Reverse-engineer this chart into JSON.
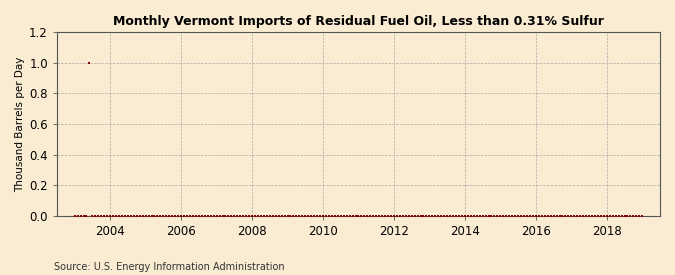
{
  "title": "Monthly Vermont Imports of Residual Fuel Oil, Less than 0.31% Sulfur",
  "ylabel": "Thousand Barrels per Day",
  "source": "Source: U.S. Energy Information Administration",
  "background_color": "#faecd2",
  "marker_color": "#8b0000",
  "grid_color": "#aaaaaa",
  "xlim_start": 2002.5,
  "xlim_end": 2019.5,
  "ylim": [
    0.0,
    1.2
  ],
  "yticks": [
    0.0,
    0.2,
    0.4,
    0.6,
    0.8,
    1.0,
    1.2
  ],
  "xticks": [
    2004,
    2006,
    2008,
    2010,
    2012,
    2014,
    2016,
    2018
  ],
  "data_points": [
    [
      2003.0,
      0.0
    ],
    [
      2003.083,
      0.0
    ],
    [
      2003.167,
      0.0
    ],
    [
      2003.25,
      0.0
    ],
    [
      2003.333,
      0.0
    ],
    [
      2003.417,
      1.0
    ],
    [
      2003.5,
      0.0
    ],
    [
      2003.583,
      0.0
    ],
    [
      2003.667,
      0.0
    ],
    [
      2003.75,
      0.0
    ],
    [
      2003.833,
      0.0
    ],
    [
      2003.917,
      0.0
    ],
    [
      2004.0,
      0.0
    ],
    [
      2004.083,
      0.0
    ],
    [
      2004.167,
      0.0
    ],
    [
      2004.25,
      0.0
    ],
    [
      2004.333,
      0.0
    ],
    [
      2004.417,
      0.0
    ],
    [
      2004.5,
      0.0
    ],
    [
      2004.583,
      0.0
    ],
    [
      2004.667,
      0.0
    ],
    [
      2004.75,
      0.0
    ],
    [
      2004.833,
      0.0
    ],
    [
      2004.917,
      0.0
    ],
    [
      2005.0,
      0.0
    ],
    [
      2005.083,
      0.0
    ],
    [
      2005.167,
      0.0
    ],
    [
      2005.25,
      0.0
    ],
    [
      2005.333,
      0.0
    ],
    [
      2005.417,
      0.0
    ],
    [
      2005.5,
      0.0
    ],
    [
      2005.583,
      0.0
    ],
    [
      2005.667,
      0.0
    ],
    [
      2005.75,
      0.0
    ],
    [
      2005.833,
      0.0
    ],
    [
      2005.917,
      0.0
    ],
    [
      2006.0,
      0.0
    ],
    [
      2006.083,
      0.0
    ],
    [
      2006.167,
      0.0
    ],
    [
      2006.25,
      0.0
    ],
    [
      2006.333,
      0.0
    ],
    [
      2006.417,
      0.0
    ],
    [
      2006.5,
      0.0
    ],
    [
      2006.583,
      0.0
    ],
    [
      2006.667,
      0.0
    ],
    [
      2006.75,
      0.0
    ],
    [
      2006.833,
      0.0
    ],
    [
      2006.917,
      0.0
    ],
    [
      2007.0,
      0.0
    ],
    [
      2007.083,
      0.0
    ],
    [
      2007.167,
      0.0
    ],
    [
      2007.25,
      0.0
    ],
    [
      2007.333,
      0.0
    ],
    [
      2007.417,
      0.0
    ],
    [
      2007.5,
      0.0
    ],
    [
      2007.583,
      0.0
    ],
    [
      2007.667,
      0.0
    ],
    [
      2007.75,
      0.0
    ],
    [
      2007.833,
      0.0
    ],
    [
      2007.917,
      0.0
    ],
    [
      2008.0,
      0.0
    ],
    [
      2008.083,
      0.0
    ],
    [
      2008.167,
      0.0
    ],
    [
      2008.25,
      0.0
    ],
    [
      2008.333,
      0.0
    ],
    [
      2008.417,
      0.0
    ],
    [
      2008.5,
      0.0
    ],
    [
      2008.583,
      0.0
    ],
    [
      2008.667,
      0.0
    ],
    [
      2008.75,
      0.0
    ],
    [
      2008.833,
      0.0
    ],
    [
      2008.917,
      0.0
    ],
    [
      2009.0,
      0.0
    ],
    [
      2009.083,
      0.0
    ],
    [
      2009.167,
      0.0
    ],
    [
      2009.25,
      0.0
    ],
    [
      2009.333,
      0.0
    ],
    [
      2009.417,
      0.0
    ],
    [
      2009.5,
      0.0
    ],
    [
      2009.583,
      0.0
    ],
    [
      2009.667,
      0.0
    ],
    [
      2009.75,
      0.0
    ],
    [
      2009.833,
      0.0
    ],
    [
      2009.917,
      0.0
    ],
    [
      2010.0,
      0.0
    ],
    [
      2010.083,
      0.0
    ],
    [
      2010.167,
      0.0
    ],
    [
      2010.25,
      0.0
    ],
    [
      2010.333,
      0.0
    ],
    [
      2010.417,
      0.0
    ],
    [
      2010.5,
      0.0
    ],
    [
      2010.583,
      0.0
    ],
    [
      2010.667,
      0.0
    ],
    [
      2010.75,
      0.0
    ],
    [
      2010.833,
      0.0
    ],
    [
      2010.917,
      0.0
    ],
    [
      2011.0,
      0.0
    ],
    [
      2011.083,
      0.0
    ],
    [
      2011.167,
      0.0
    ],
    [
      2011.25,
      0.0
    ],
    [
      2011.333,
      0.0
    ],
    [
      2011.417,
      0.0
    ],
    [
      2011.5,
      0.0
    ],
    [
      2011.583,
      0.0
    ],
    [
      2011.667,
      0.0
    ],
    [
      2011.75,
      0.0
    ],
    [
      2011.833,
      0.0
    ],
    [
      2011.917,
      0.0
    ],
    [
      2012.0,
      0.0
    ],
    [
      2012.083,
      0.0
    ],
    [
      2012.167,
      0.0
    ],
    [
      2012.25,
      0.0
    ],
    [
      2012.333,
      0.0
    ],
    [
      2012.417,
      0.0
    ],
    [
      2012.5,
      0.0
    ],
    [
      2012.583,
      0.0
    ],
    [
      2012.667,
      0.0
    ],
    [
      2012.75,
      0.0
    ],
    [
      2012.833,
      0.0
    ],
    [
      2012.917,
      0.0
    ],
    [
      2013.0,
      0.0
    ],
    [
      2013.083,
      0.0
    ],
    [
      2013.167,
      0.0
    ],
    [
      2013.25,
      0.0
    ],
    [
      2013.333,
      0.0
    ],
    [
      2013.417,
      0.0
    ],
    [
      2013.5,
      0.0
    ],
    [
      2013.583,
      0.0
    ],
    [
      2013.667,
      0.0
    ],
    [
      2013.75,
      0.0
    ],
    [
      2013.833,
      0.0
    ],
    [
      2013.917,
      0.0
    ],
    [
      2014.0,
      0.0
    ],
    [
      2014.083,
      0.0
    ],
    [
      2014.167,
      0.0
    ],
    [
      2014.25,
      0.0
    ],
    [
      2014.333,
      0.0
    ],
    [
      2014.417,
      0.0
    ],
    [
      2014.5,
      0.0
    ],
    [
      2014.583,
      0.0
    ],
    [
      2014.667,
      0.0
    ],
    [
      2014.75,
      0.0
    ],
    [
      2014.833,
      0.0
    ],
    [
      2014.917,
      0.0
    ],
    [
      2015.0,
      0.0
    ],
    [
      2015.083,
      0.0
    ],
    [
      2015.167,
      0.0
    ],
    [
      2015.25,
      0.0
    ],
    [
      2015.333,
      0.0
    ],
    [
      2015.417,
      0.0
    ],
    [
      2015.5,
      0.0
    ],
    [
      2015.583,
      0.0
    ],
    [
      2015.667,
      0.0
    ],
    [
      2015.75,
      0.0
    ],
    [
      2015.833,
      0.0
    ],
    [
      2015.917,
      0.0
    ],
    [
      2016.0,
      0.0
    ],
    [
      2016.083,
      0.0
    ],
    [
      2016.167,
      0.0
    ],
    [
      2016.25,
      0.0
    ],
    [
      2016.333,
      0.0
    ],
    [
      2016.417,
      0.0
    ],
    [
      2016.5,
      0.0
    ],
    [
      2016.583,
      0.0
    ],
    [
      2016.667,
      0.0
    ],
    [
      2016.75,
      0.0
    ],
    [
      2016.833,
      0.0
    ],
    [
      2016.917,
      0.0
    ],
    [
      2017.0,
      0.0
    ],
    [
      2017.083,
      0.0
    ],
    [
      2017.167,
      0.0
    ],
    [
      2017.25,
      0.0
    ],
    [
      2017.333,
      0.0
    ],
    [
      2017.417,
      0.0
    ],
    [
      2017.5,
      0.0
    ],
    [
      2017.583,
      0.0
    ],
    [
      2017.667,
      0.0
    ],
    [
      2017.75,
      0.0
    ],
    [
      2017.833,
      0.0
    ],
    [
      2017.917,
      0.0
    ],
    [
      2018.0,
      0.0
    ],
    [
      2018.083,
      0.0
    ],
    [
      2018.167,
      0.0
    ],
    [
      2018.25,
      0.0
    ],
    [
      2018.333,
      0.0
    ],
    [
      2018.417,
      0.0
    ],
    [
      2018.5,
      0.0
    ],
    [
      2018.583,
      0.0
    ],
    [
      2018.667,
      0.0
    ],
    [
      2018.75,
      0.0
    ],
    [
      2018.833,
      0.0
    ],
    [
      2018.917,
      0.0
    ],
    [
      2019.0,
      0.0
    ]
  ],
  "nonzero_points": [
    [
      2003.417,
      1.0
    ],
    [
      2003.75,
      0.003
    ],
    [
      2003.833,
      0.003
    ],
    [
      2004.917,
      0.003
    ],
    [
      2005.25,
      0.003
    ],
    [
      2005.583,
      0.003
    ],
    [
      2006.667,
      0.003
    ],
    [
      2007.083,
      0.003
    ],
    [
      2007.833,
      0.003
    ],
    [
      2009.167,
      0.003
    ],
    [
      2009.917,
      0.003
    ],
    [
      2010.583,
      0.003
    ],
    [
      2011.75,
      0.003
    ],
    [
      2012.083,
      0.003
    ],
    [
      2015.083,
      0.003
    ],
    [
      2015.167,
      0.003
    ],
    [
      2018.833,
      0.003
    ]
  ]
}
